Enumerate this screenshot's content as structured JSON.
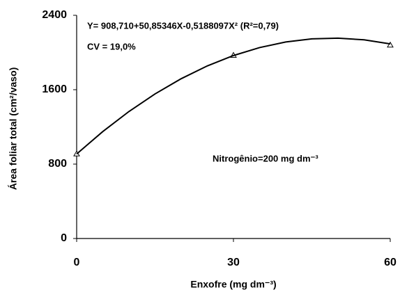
{
  "chart_data": {
    "type": "scatter",
    "annotations": [
      "Y= 908,710+50,85346X-0,5188097X² (R²=0,79)",
      "CV = 19,0%",
      "Nitrogênio=200 mg dm⁻³"
    ],
    "x_label": "Enxofre (mg dm⁻³)",
    "y_label": "Área foliar total (cm²/vaso)",
    "xlim": [
      0,
      60
    ],
    "xticks": [
      0,
      30,
      60
    ],
    "ylim": [
      0,
      2400
    ],
    "yticks": [
      0,
      800,
      1600,
      2400
    ],
    "series": [
      {
        "marker": "triangle",
        "color": "#000000",
        "x": [
          0,
          30,
          60
        ],
        "values": [
          910,
          1970,
          2080
        ]
      },
      {
        "marker": "none",
        "color": "#000000",
        "x": [
          0,
          5,
          10,
          15,
          20,
          25,
          30,
          35,
          40,
          45,
          50,
          55,
          60
        ],
        "values": [
          908.7,
          1150.0,
          1365.4,
          1554.8,
          1718.3,
          1855.8,
          1967.4,
          2053.0,
          2112.8,
          2146.5,
          2154.4,
          2136.3,
          2092.2
        ]
      }
    ]
  }
}
